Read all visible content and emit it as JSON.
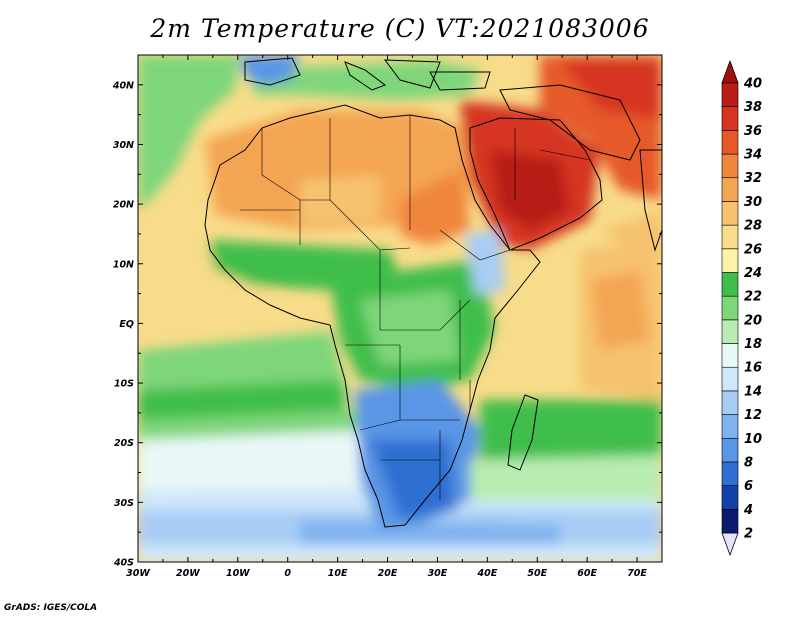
{
  "title": "2m Temperature (C) VT:2021083006",
  "credit": "GrADS: IGES/COLA",
  "lon_labels": [
    "30W",
    "20W",
    "10W",
    "0",
    "10E",
    "20E",
    "30E",
    "40E",
    "50E",
    "60E",
    "70E"
  ],
  "lat_labels": [
    "40N",
    "30N",
    "20N",
    "10N",
    "EQ",
    "10S",
    "20S",
    "30S",
    "40S"
  ],
  "colorbar": {
    "labels": [
      "2",
      "4",
      "6",
      "8",
      "10",
      "12",
      "14",
      "16",
      "18",
      "20",
      "22",
      "24",
      "26",
      "28",
      "30",
      "32",
      "34",
      "36",
      "38",
      "40"
    ],
    "colors": [
      "#0a1a6e",
      "#1540a8",
      "#2f6fd1",
      "#5a95e6",
      "#80b2ef",
      "#a7cdf5",
      "#cfe7fa",
      "#e9f8f7",
      "#b8ecb0",
      "#7fd67a",
      "#3fbe4b",
      "#fbf3a8",
      "#f8dc8a",
      "#f6c270",
      "#f4a552",
      "#f0853c",
      "#e65a2a",
      "#d53520",
      "#b81c14"
    ],
    "low_arrow_color": "#e6e2fb",
    "high_arrow_color": "#a01010"
  },
  "chart_data": {
    "type": "heatmap",
    "title": "2m Temperature (C) VT:2021083006",
    "variable": "2m Temperature",
    "units": "C",
    "valid_time": "2021083006",
    "lon_range": [
      -30,
      75
    ],
    "lat_range": [
      -40,
      45
    ],
    "levels": [
      2,
      4,
      6,
      8,
      10,
      12,
      14,
      16,
      18,
      20,
      22,
      24,
      26,
      28,
      30,
      32,
      34,
      36,
      38,
      40
    ],
    "regions": [
      {
        "region": "Arabian Peninsula",
        "approx_value": 37
      },
      {
        "region": "Sahara",
        "approx_value": 30
      },
      {
        "region": "Sahel",
        "approx_value": 25
      },
      {
        "region": "Central Africa",
        "approx_value": 22
      },
      {
        "region": "Southern Africa interior",
        "approx_value": 10
      },
      {
        "region": "Southern Ocean 35S-40S",
        "approx_value": 13
      },
      {
        "region": "Equatorial Atlantic",
        "approx_value": 24
      },
      {
        "region": "Arabian Sea",
        "approx_value": 28
      }
    ]
  }
}
